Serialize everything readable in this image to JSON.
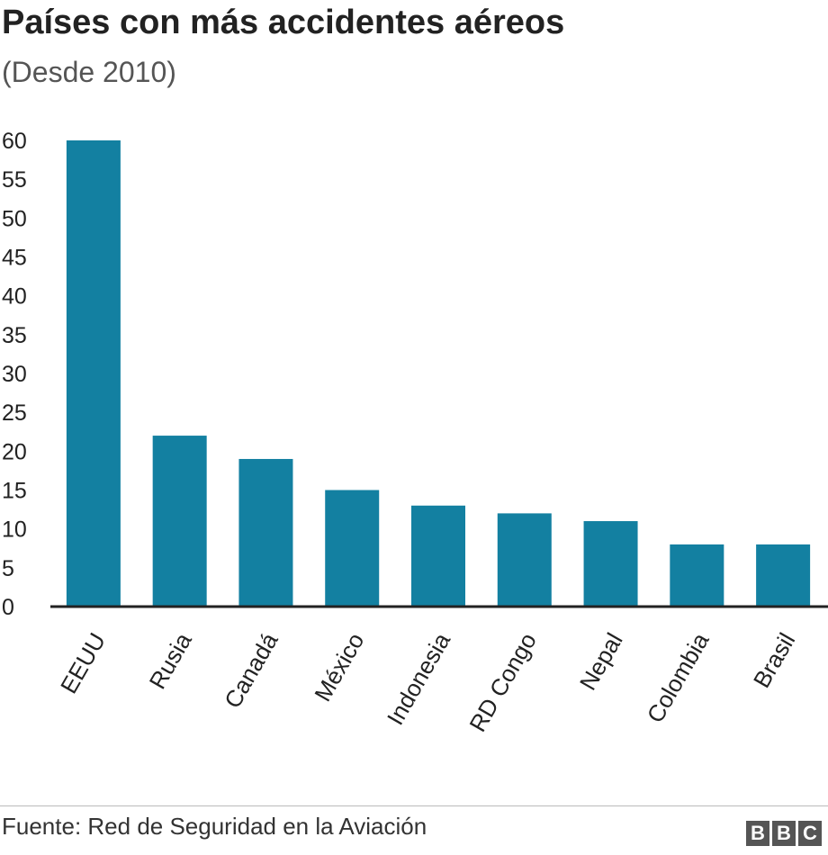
{
  "header": {
    "title": "Países con más accidentes aéreos",
    "subtitle": "(Desde 2010)"
  },
  "footer": {
    "source": "Fuente: Red de Seguridad en la Aviación",
    "logo_letters": [
      "B",
      "B",
      "C"
    ]
  },
  "chart_data": {
    "type": "bar",
    "title": "Países con más accidentes aéreos",
    "subtitle": "(Desde 2010)",
    "categories": [
      "EEUU",
      "Rusia",
      "Canadá",
      "México",
      "Indonesia",
      "RD Congo",
      "Nepal",
      "Colombia",
      "Brasil"
    ],
    "values": [
      60,
      22,
      19,
      15,
      13,
      12,
      11,
      8,
      8
    ],
    "ylim": [
      0,
      60
    ],
    "yticks": [
      0,
      5,
      10,
      15,
      20,
      25,
      30,
      35,
      40,
      45,
      50,
      55,
      60
    ],
    "grid": false,
    "bar_color": "#1380A1",
    "axis_color": "#222222"
  }
}
